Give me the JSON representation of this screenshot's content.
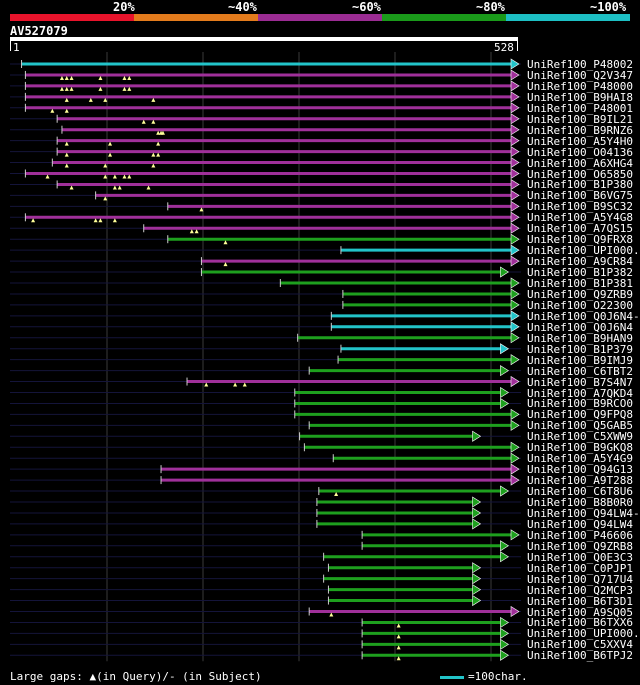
{
  "score_legend": {
    "labels": [
      "20%",
      "~40%",
      "~60%",
      "~80%",
      "~100%"
    ],
    "segments": [
      {
        "color": "#e8132b"
      },
      {
        "color": "#e37b1c"
      },
      {
        "color": "#9b2c93"
      },
      {
        "color": "#1a9a1a"
      },
      {
        "color": "#1dbfc4"
      }
    ]
  },
  "query": {
    "name": "AV527079",
    "start": "1",
    "end": "528",
    "length": 528
  },
  "colors": {
    "cyan": "#22c4c9",
    "purple": "#a0309a",
    "green": "#1ea01e",
    "grid": "#2a2a2a",
    "gap_marker": "#ffff99"
  },
  "hits": [
    {
      "name": "UniRef100_P48002",
      "color": "cyan",
      "qs": 13,
      "qe": 528,
      "gaps": []
    },
    {
      "name": "UniRef100_Q2V347",
      "color": "purple",
      "qs": 17,
      "qe": 528,
      "gaps": [
        55,
        60,
        65,
        95,
        120,
        125
      ]
    },
    {
      "name": "UniRef100_P48000",
      "color": "purple",
      "qs": 17,
      "qe": 528,
      "gaps": [
        55,
        60,
        65,
        95,
        120,
        125
      ]
    },
    {
      "name": "UniRef100_B9HAI8",
      "color": "purple",
      "qs": 17,
      "qe": 528,
      "gaps": [
        60,
        85,
        100,
        150
      ]
    },
    {
      "name": "UniRef100_P48001",
      "color": "purple",
      "qs": 17,
      "qe": 528,
      "gaps": [
        45,
        60
      ]
    },
    {
      "name": "UniRef100_B9IL21",
      "color": "purple",
      "qs": 50,
      "qe": 528,
      "gaps": [
        140,
        150
      ]
    },
    {
      "name": "UniRef100_B9RNZ6",
      "color": "purple",
      "qs": 55,
      "qe": 528,
      "gaps": [
        155,
        158,
        160
      ]
    },
    {
      "name": "UniRef100_A5Y4H0",
      "color": "purple",
      "qs": 50,
      "qe": 528,
      "gaps": [
        60,
        105,
        155
      ]
    },
    {
      "name": "UniRef100_O04136",
      "color": "purple",
      "qs": 50,
      "qe": 528,
      "gaps": [
        60,
        105,
        150,
        155
      ]
    },
    {
      "name": "UniRef100_A6XHG4",
      "color": "purple",
      "qs": 45,
      "qe": 528,
      "gaps": [
        60,
        100,
        150
      ]
    },
    {
      "name": "UniRef100_O65850",
      "color": "purple",
      "qs": 17,
      "qe": 528,
      "gaps": [
        40,
        100,
        110,
        120,
        125
      ]
    },
    {
      "name": "UniRef100_B1P380",
      "color": "purple",
      "qs": 50,
      "qe": 528,
      "gaps": [
        65,
        110,
        115,
        145
      ]
    },
    {
      "name": "UniRef100_B6VG75",
      "color": "purple",
      "qs": 90,
      "qe": 528,
      "gaps": [
        100
      ]
    },
    {
      "name": "UniRef100_B9SC32",
      "color": "purple",
      "qs": 165,
      "qe": 528,
      "gaps": [
        200
      ]
    },
    {
      "name": "UniRef100_A5Y4G8",
      "color": "purple",
      "qs": 17,
      "qe": 528,
      "gaps": [
        25,
        90,
        95,
        110
      ]
    },
    {
      "name": "UniRef100_A7QS15",
      "color": "purple",
      "qs": 140,
      "qe": 528,
      "gaps": [
        190,
        195
      ]
    },
    {
      "name": "UniRef100_Q9FRX8",
      "color": "green",
      "qs": 165,
      "qe": 528,
      "gaps": [
        225
      ]
    },
    {
      "name": "UniRef100_UPI000..",
      "color": "cyan",
      "qs": 345,
      "qe": 528,
      "gaps": []
    },
    {
      "name": "UniRef100_A9CR84",
      "color": "purple",
      "qs": 200,
      "qe": 528,
      "gaps": [
        225
      ]
    },
    {
      "name": "UniRef100_B1P382",
      "color": "green",
      "qs": 200,
      "qe": 517,
      "gaps": []
    },
    {
      "name": "UniRef100_B1P381",
      "color": "green",
      "qs": 282,
      "qe": 528,
      "gaps": []
    },
    {
      "name": "UniRef100_Q9ZRB9",
      "color": "green",
      "qs": 347,
      "qe": 528,
      "gaps": []
    },
    {
      "name": "UniRef100_O22300",
      "color": "green",
      "qs": 347,
      "qe": 528,
      "gaps": []
    },
    {
      "name": "UniRef100_Q0J6N4-2",
      "color": "cyan",
      "qs": 335,
      "qe": 528,
      "gaps": []
    },
    {
      "name": "UniRef100_Q0J6N4",
      "color": "cyan",
      "qs": 335,
      "qe": 528,
      "gaps": []
    },
    {
      "name": "UniRef100_B9HAN9",
      "color": "green",
      "qs": 300,
      "qe": 528,
      "gaps": []
    },
    {
      "name": "UniRef100_B1P379",
      "color": "cyan",
      "qs": 345,
      "qe": 517,
      "gaps": []
    },
    {
      "name": "UniRef100_B9IMJ9",
      "color": "green",
      "qs": 342,
      "qe": 528,
      "gaps": []
    },
    {
      "name": "UniRef100_C6TBT2",
      "color": "green",
      "qs": 312,
      "qe": 517,
      "gaps": []
    },
    {
      "name": "UniRef100_B7S4N7",
      "color": "purple",
      "qs": 185,
      "qe": 528,
      "gaps": [
        205,
        235,
        245
      ]
    },
    {
      "name": "UniRef100_A7QKD4",
      "color": "green",
      "qs": 297,
      "qe": 517,
      "gaps": []
    },
    {
      "name": "UniRef100_B9RCO0",
      "color": "green",
      "qs": 297,
      "qe": 517,
      "gaps": []
    },
    {
      "name": "UniRef100_Q9FPQ8",
      "color": "green",
      "qs": 297,
      "qe": 528,
      "gaps": []
    },
    {
      "name": "UniRef100_Q5GAB5",
      "color": "green",
      "qs": 312,
      "qe": 528,
      "gaps": []
    },
    {
      "name": "UniRef100_C5XWW9",
      "color": "green",
      "qs": 302,
      "qe": 488,
      "gaps": []
    },
    {
      "name": "UniRef100_B9GKQ8",
      "color": "green",
      "qs": 307,
      "qe": 528,
      "gaps": []
    },
    {
      "name": "UniRef100_A5Y4G9",
      "color": "green",
      "qs": 337,
      "qe": 528,
      "gaps": []
    },
    {
      "name": "UniRef100_Q94G13",
      "color": "purple",
      "qs": 158,
      "qe": 528,
      "gaps": []
    },
    {
      "name": "UniRef100_A9T288",
      "color": "purple",
      "qs": 158,
      "qe": 528,
      "gaps": []
    },
    {
      "name": "UniRef100_C6T8U6",
      "color": "green",
      "qs": 322,
      "qe": 517,
      "gaps": [
        340
      ]
    },
    {
      "name": "UniRef100_B8B0R0",
      "color": "green",
      "qs": 320,
      "qe": 488,
      "gaps": []
    },
    {
      "name": "UniRef100_Q94LW4-2",
      "color": "green",
      "qs": 320,
      "qe": 488,
      "gaps": []
    },
    {
      "name": "UniRef100_Q94LW4",
      "color": "green",
      "qs": 320,
      "qe": 488,
      "gaps": []
    },
    {
      "name": "UniRef100_P46606",
      "color": "green",
      "qs": 367,
      "qe": 528,
      "gaps": []
    },
    {
      "name": "UniRef100_Q9ZRB8",
      "color": "green",
      "qs": 367,
      "qe": 517,
      "gaps": []
    },
    {
      "name": "UniRef100_Q0E3C3",
      "color": "green",
      "qs": 327,
      "qe": 517,
      "gaps": []
    },
    {
      "name": "UniRef100_C0PJP1",
      "color": "green",
      "qs": 332,
      "qe": 488,
      "gaps": []
    },
    {
      "name": "UniRef100_Q717U4",
      "color": "green",
      "qs": 327,
      "qe": 488,
      "gaps": []
    },
    {
      "name": "UniRef100_Q2MCP3",
      "color": "green",
      "qs": 332,
      "qe": 488,
      "gaps": []
    },
    {
      "name": "UniRef100_B6T3D1",
      "color": "green",
      "qs": 332,
      "qe": 488,
      "gaps": []
    },
    {
      "name": "UniRef100_A9SQ05",
      "color": "purple",
      "qs": 312,
      "qe": 528,
      "gaps": [
        335
      ]
    },
    {
      "name": "UniRef100_B6TXX6",
      "color": "green",
      "qs": 367,
      "qe": 517,
      "gaps": [
        405
      ]
    },
    {
      "name": "UniRef100_UPI000..",
      "color": "green",
      "qs": 367,
      "qe": 517,
      "gaps": [
        405
      ]
    },
    {
      "name": "UniRef100_C5XXV4",
      "color": "green",
      "qs": 367,
      "qe": 517,
      "gaps": [
        405
      ]
    },
    {
      "name": "UniRef100_B6TPJ2",
      "color": "green",
      "qs": 367,
      "qe": 517,
      "gaps": [
        405
      ]
    }
  ],
  "footer": {
    "gaps_text": "Large gaps: ▲(in Query)/- (in Subject)",
    "scale_text": "=100char."
  }
}
